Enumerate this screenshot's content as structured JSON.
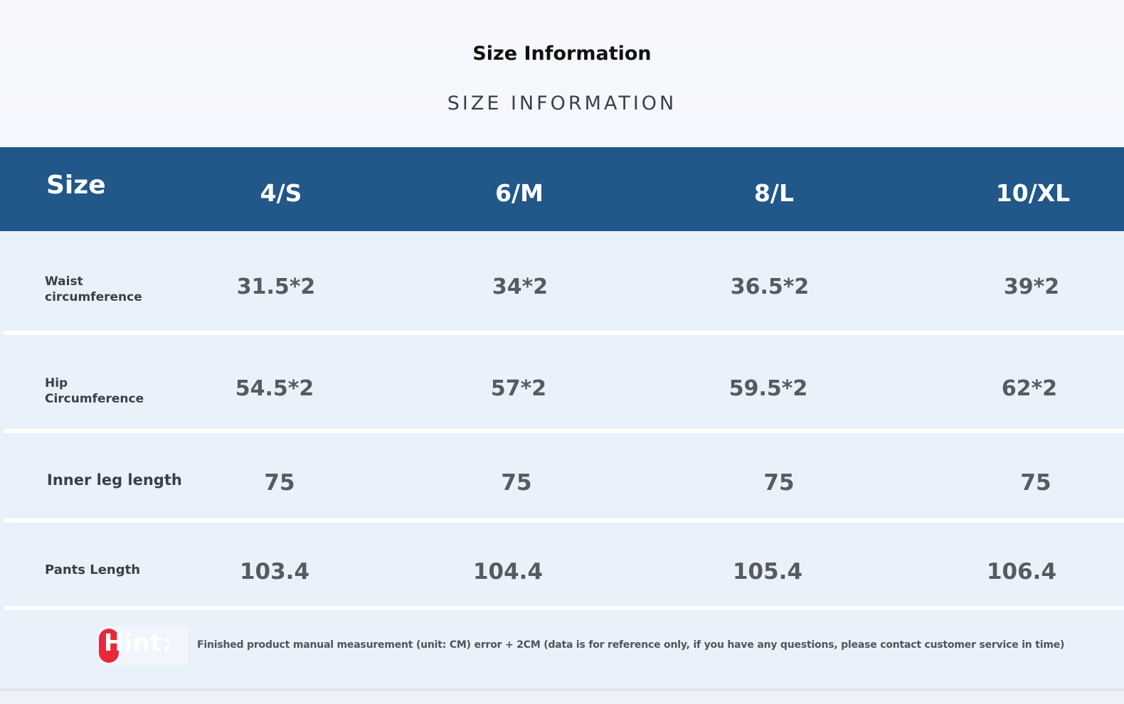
{
  "title": "Size Information",
  "subtitle": "SIZE INFORMATION",
  "table": {
    "header_label": "Size",
    "columns": [
      "4/S",
      "6/M",
      "8/L",
      "10/XL"
    ],
    "rows": [
      {
        "label": "Waist circumference",
        "values": [
          "31.5*2",
          "34*2",
          "36.5*2",
          "39*2"
        ]
      },
      {
        "label": "Hip Circumference",
        "values": [
          "54.5*2",
          "57*2",
          "59.5*2",
          "62*2"
        ]
      },
      {
        "label": "Inner leg length",
        "values": [
          "75",
          "75",
          "75",
          "75"
        ]
      },
      {
        "label": "Pants Length",
        "values": [
          "103.4",
          "104.4",
          "105.4",
          "106.4"
        ]
      }
    ]
  },
  "hint": {
    "label": "Hint:",
    "text": "Finished product manual measurement (unit: CM) error + 2CM (data is for reference only, if you have any questions, please contact customer service in time)"
  },
  "colors": {
    "header_band": "#215789",
    "row_background": "#e9f1fb",
    "hint_badge": "#e8283a"
  }
}
